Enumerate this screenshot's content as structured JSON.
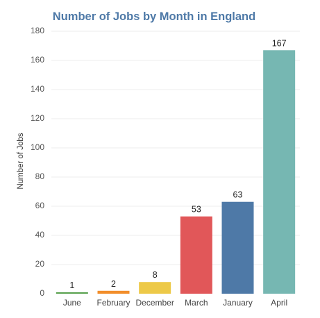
{
  "chart_data": {
    "type": "bar",
    "title": "Number of Jobs by Month in England",
    "xlabel": "",
    "ylabel": "Number of Jobs",
    "categories": [
      "June",
      "February",
      "December",
      "March",
      "January",
      "April"
    ],
    "values": [
      1,
      2,
      8,
      53,
      63,
      167
    ],
    "colors": [
      "#59a14f",
      "#f28e2b",
      "#edc948",
      "#e15759",
      "#4e79a7",
      "#76b7b2"
    ],
    "ylim": [
      0,
      180
    ],
    "yticks": [
      0,
      20,
      40,
      60,
      80,
      100,
      120,
      140,
      160,
      180
    ],
    "grid": true,
    "legend": "none",
    "title_color": "#4e79a7"
  }
}
